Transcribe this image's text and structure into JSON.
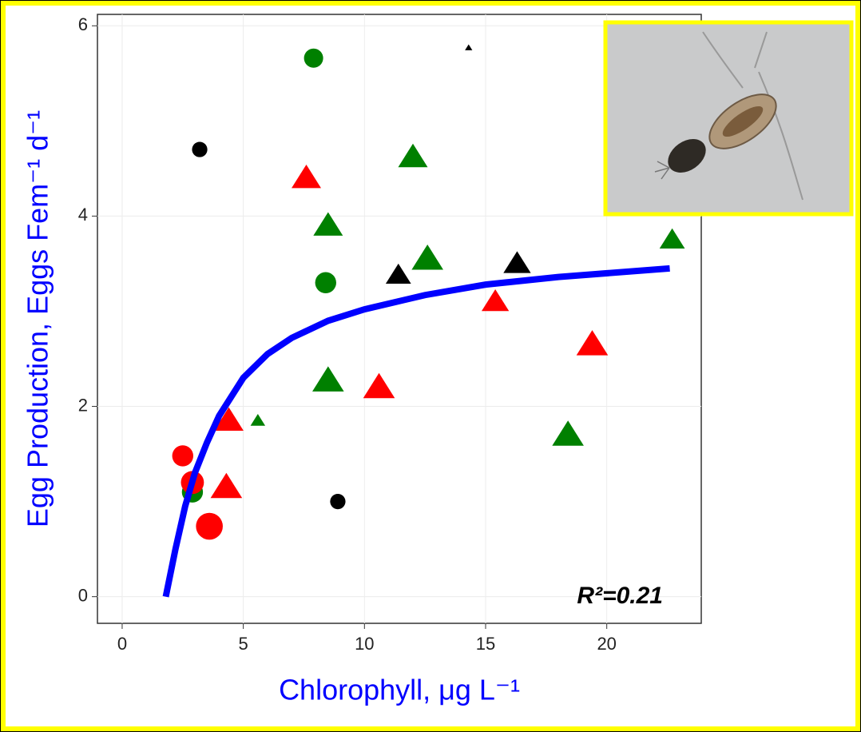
{
  "chart_data": {
    "type": "scatter",
    "xlabel": "Chlorophyll, μg L⁻¹",
    "ylabel": "Egg Production, Eggs Fem⁻¹ d⁻¹",
    "annotation": "R²=0.21",
    "xlim": [
      -1.02,
      23.9
    ],
    "ylim": [
      -0.28,
      6.12
    ],
    "xticks": [
      0,
      5,
      10,
      15,
      20
    ],
    "yticks": [
      0,
      2,
      4,
      6
    ],
    "grid": true,
    "series": [
      {
        "marker": "circle",
        "color": "#008000",
        "x": [
          7.9,
          8.4,
          2.9
        ],
        "values": [
          5.66,
          3.3,
          1.1
        ],
        "sizes": [
          2,
          2.2,
          2.2
        ]
      },
      {
        "marker": "circle",
        "color": "#000000",
        "x": [
          3.2,
          8.9
        ],
        "values": [
          4.7,
          1.0
        ],
        "sizes": [
          1.6,
          1.6
        ]
      },
      {
        "marker": "circle",
        "color": "#ff0000",
        "x": [
          2.5,
          2.9,
          3.6
        ],
        "values": [
          1.48,
          1.2,
          0.74
        ],
        "sizes": [
          2.2,
          2.4,
          2.8
        ]
      },
      {
        "marker": "triangle",
        "color": "#ff0000",
        "x": [
          7.6,
          4.4,
          4.3,
          10.6,
          15.4,
          19.4
        ],
        "values": [
          4.4,
          1.85,
          1.15,
          2.2,
          3.1,
          2.65
        ],
        "sizes": [
          2.8,
          2.8,
          3,
          3,
          2.6,
          3
        ]
      },
      {
        "marker": "triangle",
        "color": "#008000",
        "x": [
          12.0,
          8.5,
          12.6,
          8.5,
          5.6,
          18.4,
          22.7
        ],
        "values": [
          4.62,
          3.9,
          3.55,
          2.27,
          1.85,
          1.7,
          3.75
        ],
        "sizes": [
          2.8,
          2.8,
          3,
          3,
          1.4,
          3,
          2.4
        ]
      },
      {
        "marker": "triangle",
        "color": "#000000",
        "x": [
          14.3,
          11.4,
          16.3
        ],
        "values": [
          5.77,
          3.38,
          3.5
        ],
        "sizes": [
          0.7,
          2.4,
          2.6
        ]
      },
      {
        "type": "line",
        "color": "#0000ff",
        "x": [
          1.8,
          2.2,
          2.6,
          3.0,
          3.5,
          4.0,
          5.0,
          6.0,
          7.0,
          8.5,
          10.0,
          12.5,
          15.0,
          18.0,
          22.6
        ],
        "values": [
          0.0,
          0.5,
          0.95,
          1.3,
          1.62,
          1.9,
          2.3,
          2.55,
          2.72,
          2.9,
          3.02,
          3.17,
          3.28,
          3.36,
          3.45
        ]
      }
    ]
  }
}
